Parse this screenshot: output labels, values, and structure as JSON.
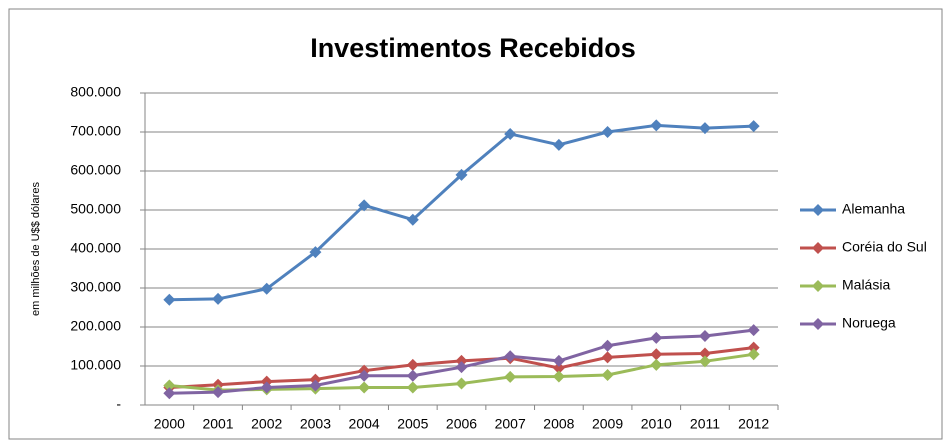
{
  "chart_data": {
    "type": "line",
    "title": "Investimentos Recebidos",
    "y_label": "em milhões de U$$ dólares",
    "categories": [
      "2000",
      "2001",
      "2002",
      "2003",
      "2004",
      "2005",
      "2006",
      "2007",
      "2008",
      "2009",
      "2010",
      "2011",
      "2012"
    ],
    "series": [
      {
        "name": "Alemanha",
        "color": "#4f81bd",
        "values": [
          270000,
          272000,
          298000,
          392000,
          512000,
          475000,
          590000,
          695000,
          667000,
          700000,
          717000,
          710000,
          715000
        ]
      },
      {
        "name": "Coréia do Sul",
        "color": "#c0504d",
        "values": [
          45000,
          52000,
          60000,
          65000,
          88000,
          103000,
          113000,
          120000,
          95000,
          122000,
          130000,
          132000,
          147000
        ]
      },
      {
        "name": "Malásia",
        "color": "#9bbb59",
        "values": [
          50000,
          38000,
          40000,
          42000,
          45000,
          45000,
          55000,
          72000,
          73000,
          77000,
          103000,
          112000,
          130000
        ]
      },
      {
        "name": "Noruega",
        "color": "#8064a2",
        "values": [
          30000,
          33000,
          45000,
          50000,
          75000,
          75000,
          97000,
          125000,
          113000,
          152000,
          172000,
          177000,
          192000
        ]
      }
    ],
    "ylim": [
      0,
      800000
    ],
    "yticks": [
      {
        "value": 0,
        "label": "-"
      },
      {
        "value": 100000,
        "label": "100.000"
      },
      {
        "value": 200000,
        "label": "200.000"
      },
      {
        "value": 300000,
        "label": "300.000"
      },
      {
        "value": 400000,
        "label": "400.000"
      },
      {
        "value": 500000,
        "label": "500.000"
      },
      {
        "value": 600000,
        "label": "600.000"
      },
      {
        "value": 700000,
        "label": "700.000"
      },
      {
        "value": 800000,
        "label": "800.000"
      }
    ],
    "grid": true,
    "legend": "right"
  }
}
